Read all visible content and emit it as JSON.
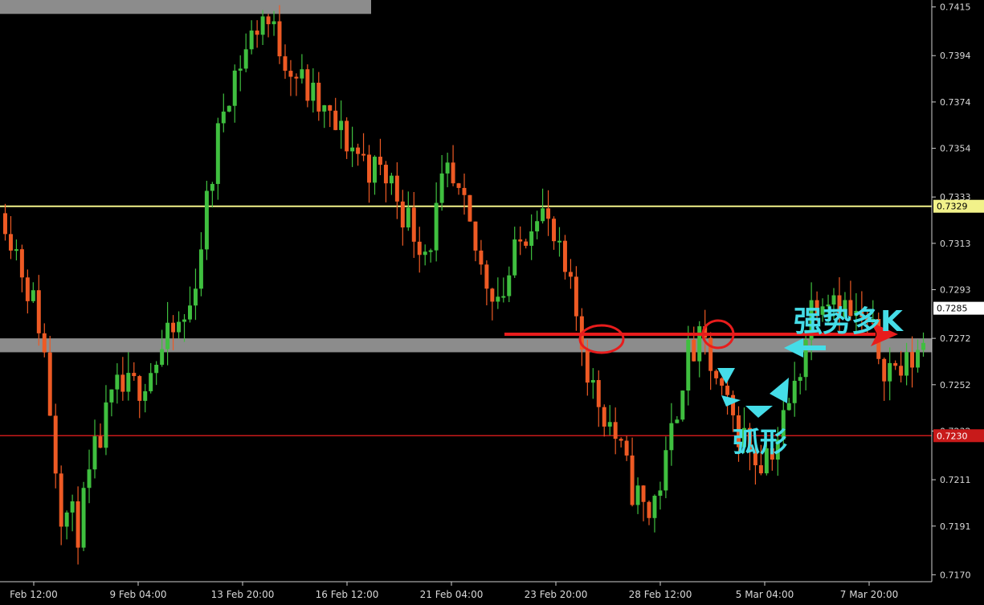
{
  "chart_data": {
    "type": "candlestick",
    "instrument_colors": {
      "background": "#000000",
      "bull_candle": "#3fbf3f",
      "bear_candle": "#ee5a24",
      "axis": "#cfcfcf",
      "resistance_line": "#f2f28a",
      "support_line": "#c81a1a",
      "zone_band": "#8c8c8c",
      "annotation_arrow": "#e81c1c",
      "annotation_text": "#45dde8",
      "current_price_tag": "#ffffff"
    },
    "ylim": [
      0.7167,
      0.7418
    ],
    "y_ticks": [
      "0.7415",
      "0.7394",
      "0.7374",
      "0.7354",
      "0.7333",
      "0.7313",
      "0.7293",
      "0.7272",
      "0.7252",
      "0.7232",
      "0.7211",
      "0.7191",
      "0.7170"
    ],
    "x_ticks": [
      "Feb 12:00",
      "9 Feb 04:00",
      "13 Feb 20:00",
      "16 Feb 12:00",
      "21 Feb 04:00",
      "23 Feb 20:00",
      "28 Feb 12:00",
      "5 Mar 04:00",
      "7 Mar 20:00"
    ],
    "horizontal_levels": [
      {
        "label": "0.7329",
        "value": 0.7329,
        "style": "resistance"
      },
      {
        "label": "0.7285",
        "value": 0.7285,
        "style": "current"
      },
      {
        "label": "0.7230",
        "value": 0.723,
        "style": "support"
      }
    ],
    "zone_bands": [
      {
        "from": 0.7266,
        "to": 0.7272
      },
      {
        "from": 0.7412,
        "to": 0.7418
      }
    ],
    "close_path": [
      0.7326,
      0.73,
      0.7275,
      0.72,
      0.719,
      0.7225,
      0.7248,
      0.725,
      0.726,
      0.7272,
      0.7282,
      0.733,
      0.7378,
      0.7395,
      0.7412,
      0.7398,
      0.7384,
      0.7372,
      0.7362,
      0.7354,
      0.7345,
      0.734,
      0.7322,
      0.731,
      0.7342,
      0.7325,
      0.73,
      0.729,
      0.7312,
      0.7332,
      0.731,
      0.7285,
      0.725,
      0.7235,
      0.721,
      0.7195,
      0.7218,
      0.7262,
      0.727,
      0.7245,
      0.7232,
      0.722,
      0.7228,
      0.725,
      0.729,
      0.7294,
      0.7282,
      0.7276,
      0.726,
      0.7258,
      0.7272
    ],
    "annotations": [
      {
        "text": "强势多K"
      },
      {
        "text": "弧形"
      }
    ]
  }
}
